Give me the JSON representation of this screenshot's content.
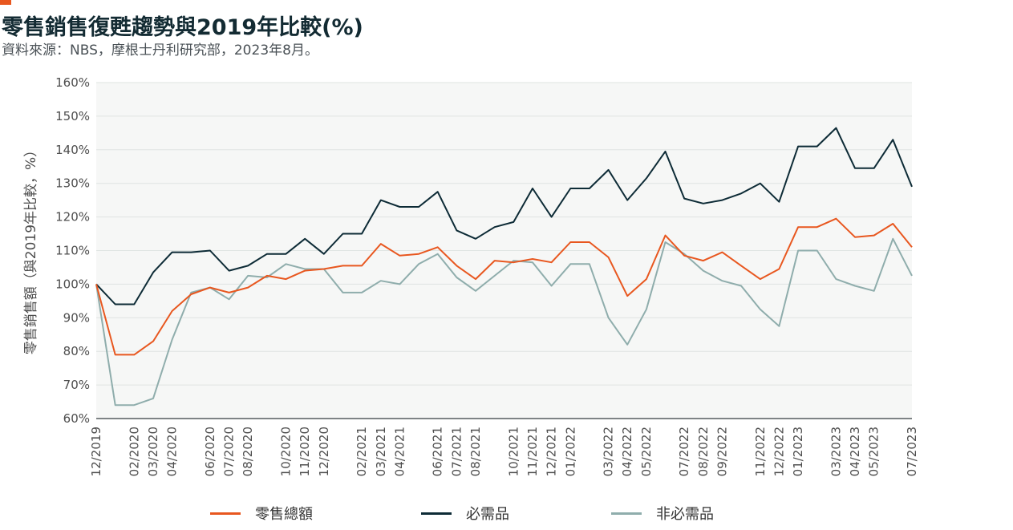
{
  "header": {
    "title": "零售銷售復甦趨勢與2019年比較(%)",
    "subtitle": "資料來源：NBS，摩根士丹利研究部，2023年8月。"
  },
  "colors": {
    "accent": "#e8571f",
    "retail": "#e8571f",
    "necessities": "#0d2b36",
    "non_necessities": "#8fadac",
    "plot_background": "#f6f7f6",
    "gridline": "#dfe4e2"
  },
  "chart_data": {
    "type": "line",
    "title": "零售銷售復甦趨勢與2019年比較(%)",
    "ylabel": "零售銷售額（與2019年比較，%）",
    "xlabel": "",
    "ylim": [
      60,
      160
    ],
    "yticks": [
      60,
      70,
      80,
      90,
      100,
      110,
      120,
      130,
      140,
      150,
      160
    ],
    "ytick_labels": [
      "60%",
      "70%",
      "80%",
      "90%",
      "100%",
      "110%",
      "120%",
      "130%",
      "140%",
      "150%",
      "160%"
    ],
    "grid": true,
    "legend_position": "bottom",
    "x": [
      "12/2019",
      "01/2020",
      "02/2020",
      "03/2020",
      "04/2020",
      "05/2020",
      "06/2020",
      "07/2020",
      "08/2020",
      "09/2020",
      "10/2020",
      "11/2020",
      "12/2020",
      "01/2021",
      "02/2021",
      "03/2021",
      "04/2021",
      "05/2021",
      "06/2021",
      "07/2021",
      "08/2021",
      "09/2021",
      "10/2021",
      "11/2021",
      "12/2021",
      "01/2022",
      "02/2022",
      "03/2022",
      "04/2022",
      "05/2022",
      "06/2022",
      "07/2022",
      "08/2022",
      "09/2022",
      "10/2022",
      "11/2022",
      "12/2022",
      "01/2023",
      "02/2023",
      "03/2023",
      "04/2023",
      "05/2023",
      "06/2023",
      "07/2023"
    ],
    "xtick_labels": [
      "12/2019",
      "02/2020",
      "03/2020",
      "04/2020",
      "06/2020",
      "07/2020",
      "08/2020",
      "10/2020",
      "11/2020",
      "12/2020",
      "02/2021",
      "03/2021",
      "04/2021",
      "06/2021",
      "07/2021",
      "08/2021",
      "10/2021",
      "11/2021",
      "12/2021",
      "01/2022",
      "03/2022",
      "04/2022",
      "05/2022",
      "07/2022",
      "08/2022",
      "09/2022",
      "11/2022",
      "12/2022",
      "01/2023",
      "03/2023",
      "04/2023",
      "05/2023",
      "07/2023"
    ],
    "series": [
      {
        "name": "零售總額",
        "color": "#e8571f",
        "values": [
          100,
          79,
          79,
          83,
          92,
          97,
          99,
          97.5,
          99,
          102.5,
          101.5,
          104,
          104.5,
          105.5,
          105.5,
          112,
          108.5,
          109,
          111,
          105.5,
          101.5,
          107,
          106.5,
          107.5,
          106.5,
          112.5,
          112.5,
          108,
          96.5,
          101.5,
          114.5,
          108.5,
          107,
          109.5,
          105.5,
          101.5,
          104.5,
          117,
          117,
          119.5,
          114,
          114.5,
          118,
          111
        ]
      },
      {
        "name": "必需品",
        "color": "#0d2b36",
        "values": [
          100,
          94,
          94,
          103.5,
          109.5,
          109.5,
          110,
          104,
          105.5,
          109,
          109,
          113.5,
          109,
          115,
          115,
          125,
          123,
          123,
          127.5,
          116,
          113.5,
          117,
          118.5,
          128.5,
          120,
          128.5,
          128.5,
          134,
          125,
          131.5,
          139.5,
          125.5,
          124,
          125,
          127,
          130,
          124.5,
          141,
          141,
          146.5,
          134.5,
          134.5,
          143,
          129
        ]
      },
      {
        "name": "非必需品",
        "color": "#8fadac",
        "values": [
          100,
          64,
          64,
          66,
          83.5,
          97.5,
          99,
          95.5,
          102.5,
          102,
          106,
          104.5,
          104.5,
          97.5,
          97.5,
          101,
          100,
          106,
          109,
          102,
          98,
          102.5,
          107,
          106.5,
          99.5,
          106,
          106,
          90,
          82,
          92.5,
          112.5,
          109,
          104,
          101,
          99.5,
          92.5,
          87.5,
          110,
          110,
          101.5,
          99.5,
          98,
          113.5,
          102.5
        ]
      }
    ]
  }
}
